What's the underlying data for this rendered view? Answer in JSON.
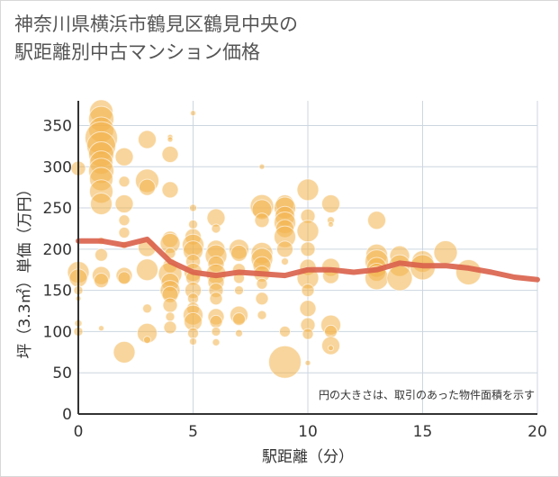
{
  "title": {
    "line1": "神奈川県横浜市鶴見区鶴見中央の",
    "line2": "駅距離別中古マンション価格"
  },
  "chart_data": {
    "type": "scatter",
    "title": "神奈川県横浜市鶴見区鶴見中央の駅距離別中古マンション価格",
    "xlabel": "駅距離（分）",
    "ylabel": "坪（3.3㎡）単価（万円）",
    "xlim": [
      0,
      20
    ],
    "ylim": [
      0,
      380
    ],
    "xticks": [
      "0",
      "5",
      "10",
      "15",
      "20"
    ],
    "yticks": [
      "0",
      "50",
      "100",
      "150",
      "200",
      "250",
      "300",
      "350"
    ],
    "xtick_values": [
      0,
      5,
      10,
      15,
      20
    ],
    "ytick_values": [
      0,
      50,
      100,
      150,
      200,
      250,
      300,
      350
    ],
    "grid": true,
    "annotation": "円の大きさは、取引のあった物件面積を示す",
    "colors": {
      "bubble": "#f2b24a",
      "line": "#d9604a",
      "grid": "#ccd6e0",
      "axis": "#333333"
    },
    "bubbles": [
      {
        "x": 0,
        "y": 298,
        "s": 8
      },
      {
        "x": 0,
        "y": 172,
        "s": 12
      },
      {
        "x": 0,
        "y": 165,
        "s": 10
      },
      {
        "x": 0,
        "y": 150,
        "s": 5
      },
      {
        "x": 0,
        "y": 140,
        "s": 3
      },
      {
        "x": 0,
        "y": 110,
        "s": 4
      },
      {
        "x": 0,
        "y": 100,
        "s": 5
      },
      {
        "x": 1,
        "y": 367,
        "s": 13
      },
      {
        "x": 1,
        "y": 358,
        "s": 14
      },
      {
        "x": 1,
        "y": 345,
        "s": 14
      },
      {
        "x": 1,
        "y": 335,
        "s": 18
      },
      {
        "x": 1,
        "y": 325,
        "s": 16
      },
      {
        "x": 1,
        "y": 315,
        "s": 14
      },
      {
        "x": 1,
        "y": 305,
        "s": 13
      },
      {
        "x": 1,
        "y": 295,
        "s": 14
      },
      {
        "x": 1,
        "y": 285,
        "s": 13
      },
      {
        "x": 1,
        "y": 270,
        "s": 13
      },
      {
        "x": 1,
        "y": 255,
        "s": 12
      },
      {
        "x": 1,
        "y": 210,
        "s": 4
      },
      {
        "x": 1,
        "y": 193,
        "s": 7
      },
      {
        "x": 1,
        "y": 168,
        "s": 10
      },
      {
        "x": 1,
        "y": 162,
        "s": 8
      },
      {
        "x": 1,
        "y": 104,
        "s": 3
      },
      {
        "x": 2,
        "y": 312,
        "s": 10
      },
      {
        "x": 2,
        "y": 282,
        "s": 6
      },
      {
        "x": 2,
        "y": 255,
        "s": 10
      },
      {
        "x": 2,
        "y": 235,
        "s": 6
      },
      {
        "x": 2,
        "y": 220,
        "s": 6
      },
      {
        "x": 2,
        "y": 205,
        "s": 4
      },
      {
        "x": 2,
        "y": 168,
        "s": 9
      },
      {
        "x": 2,
        "y": 165,
        "s": 7
      },
      {
        "x": 2,
        "y": 75,
        "s": 12
      },
      {
        "x": 3,
        "y": 333,
        "s": 10
      },
      {
        "x": 3,
        "y": 283,
        "s": 13
      },
      {
        "x": 3,
        "y": 275,
        "s": 9
      },
      {
        "x": 3,
        "y": 202,
        "s": 10
      },
      {
        "x": 3,
        "y": 175,
        "s": 12
      },
      {
        "x": 3,
        "y": 128,
        "s": 5
      },
      {
        "x": 3,
        "y": 98,
        "s": 11
      },
      {
        "x": 3,
        "y": 90,
        "s": 4
      },
      {
        "x": 4,
        "y": 336,
        "s": 3
      },
      {
        "x": 4,
        "y": 333,
        "s": 3
      },
      {
        "x": 4,
        "y": 315,
        "s": 9
      },
      {
        "x": 4,
        "y": 272,
        "s": 9
      },
      {
        "x": 4,
        "y": 212,
        "s": 9
      },
      {
        "x": 4,
        "y": 207,
        "s": 11
      },
      {
        "x": 4,
        "y": 195,
        "s": 6
      },
      {
        "x": 4,
        "y": 180,
        "s": 8
      },
      {
        "x": 4,
        "y": 170,
        "s": 13
      },
      {
        "x": 4,
        "y": 160,
        "s": 10
      },
      {
        "x": 4,
        "y": 150,
        "s": 11
      },
      {
        "x": 4,
        "y": 145,
        "s": 9
      },
      {
        "x": 4,
        "y": 132,
        "s": 8
      },
      {
        "x": 4,
        "y": 118,
        "s": 5
      },
      {
        "x": 4,
        "y": 105,
        "s": 7
      },
      {
        "x": 5,
        "y": 365,
        "s": 3
      },
      {
        "x": 5,
        "y": 250,
        "s": 4
      },
      {
        "x": 5,
        "y": 230,
        "s": 5
      },
      {
        "x": 5,
        "y": 215,
        "s": 9
      },
      {
        "x": 5,
        "y": 205,
        "s": 12
      },
      {
        "x": 5,
        "y": 198,
        "s": 11
      },
      {
        "x": 5,
        "y": 185,
        "s": 8
      },
      {
        "x": 5,
        "y": 172,
        "s": 10
      },
      {
        "x": 5,
        "y": 165,
        "s": 8
      },
      {
        "x": 5,
        "y": 150,
        "s": 9
      },
      {
        "x": 5,
        "y": 140,
        "s": 6
      },
      {
        "x": 5,
        "y": 128,
        "s": 7
      },
      {
        "x": 5,
        "y": 120,
        "s": 11
      },
      {
        "x": 5,
        "y": 112,
        "s": 10
      },
      {
        "x": 5,
        "y": 98,
        "s": 6
      },
      {
        "x": 5,
        "y": 88,
        "s": 4
      },
      {
        "x": 6,
        "y": 238,
        "s": 10
      },
      {
        "x": 6,
        "y": 225,
        "s": 5
      },
      {
        "x": 6,
        "y": 200,
        "s": 10
      },
      {
        "x": 6,
        "y": 192,
        "s": 12
      },
      {
        "x": 6,
        "y": 182,
        "s": 9
      },
      {
        "x": 6,
        "y": 170,
        "s": 11
      },
      {
        "x": 6,
        "y": 160,
        "s": 9
      },
      {
        "x": 6,
        "y": 150,
        "s": 8
      },
      {
        "x": 6,
        "y": 140,
        "s": 7
      },
      {
        "x": 6,
        "y": 118,
        "s": 9
      },
      {
        "x": 6,
        "y": 112,
        "s": 7
      },
      {
        "x": 6,
        "y": 100,
        "s": 5
      },
      {
        "x": 6,
        "y": 87,
        "s": 4
      },
      {
        "x": 7,
        "y": 200,
        "s": 11
      },
      {
        "x": 7,
        "y": 195,
        "s": 9
      },
      {
        "x": 7,
        "y": 175,
        "s": 7
      },
      {
        "x": 7,
        "y": 165,
        "s": 6
      },
      {
        "x": 7,
        "y": 150,
        "s": 5
      },
      {
        "x": 7,
        "y": 120,
        "s": 10
      },
      {
        "x": 7,
        "y": 115,
        "s": 7
      },
      {
        "x": 7,
        "y": 98,
        "s": 4
      },
      {
        "x": 8,
        "y": 300,
        "s": 3
      },
      {
        "x": 8,
        "y": 252,
        "s": 13
      },
      {
        "x": 8,
        "y": 248,
        "s": 11
      },
      {
        "x": 8,
        "y": 235,
        "s": 8
      },
      {
        "x": 8,
        "y": 195,
        "s": 12
      },
      {
        "x": 8,
        "y": 188,
        "s": 12
      },
      {
        "x": 8,
        "y": 180,
        "s": 10
      },
      {
        "x": 8,
        "y": 170,
        "s": 9
      },
      {
        "x": 8,
        "y": 158,
        "s": 6
      },
      {
        "x": 8,
        "y": 140,
        "s": 7
      },
      {
        "x": 8,
        "y": 120,
        "s": 5
      },
      {
        "x": 9,
        "y": 255,
        "s": 10
      },
      {
        "x": 9,
        "y": 250,
        "s": 12
      },
      {
        "x": 9,
        "y": 240,
        "s": 11
      },
      {
        "x": 9,
        "y": 232,
        "s": 12
      },
      {
        "x": 9,
        "y": 225,
        "s": 10
      },
      {
        "x": 9,
        "y": 215,
        "s": 12
      },
      {
        "x": 9,
        "y": 200,
        "s": 9
      },
      {
        "x": 9,
        "y": 185,
        "s": 4
      },
      {
        "x": 9,
        "y": 100,
        "s": 6
      },
      {
        "x": 9,
        "y": 63,
        "s": 18
      },
      {
        "x": 10,
        "y": 272,
        "s": 12
      },
      {
        "x": 10,
        "y": 240,
        "s": 8
      },
      {
        "x": 10,
        "y": 222,
        "s": 12
      },
      {
        "x": 10,
        "y": 200,
        "s": 8
      },
      {
        "x": 10,
        "y": 178,
        "s": 9
      },
      {
        "x": 10,
        "y": 165,
        "s": 12
      },
      {
        "x": 10,
        "y": 150,
        "s": 7
      },
      {
        "x": 10,
        "y": 128,
        "s": 9
      },
      {
        "x": 10,
        "y": 108,
        "s": 8
      },
      {
        "x": 10,
        "y": 97,
        "s": 6
      },
      {
        "x": 10,
        "y": 62,
        "s": 3
      },
      {
        "x": 11,
        "y": 255,
        "s": 10
      },
      {
        "x": 11,
        "y": 235,
        "s": 4
      },
      {
        "x": 11,
        "y": 230,
        "s": 3
      },
      {
        "x": 11,
        "y": 178,
        "s": 10
      },
      {
        "x": 11,
        "y": 168,
        "s": 9
      },
      {
        "x": 11,
        "y": 108,
        "s": 11
      },
      {
        "x": 11,
        "y": 100,
        "s": 7
      },
      {
        "x": 11,
        "y": 83,
        "s": 10
      },
      {
        "x": 11,
        "y": 80,
        "s": 3
      },
      {
        "x": 13,
        "y": 235,
        "s": 10
      },
      {
        "x": 13,
        "y": 193,
        "s": 12
      },
      {
        "x": 13,
        "y": 185,
        "s": 13
      },
      {
        "x": 13,
        "y": 178,
        "s": 11
      },
      {
        "x": 13,
        "y": 172,
        "s": 10
      },
      {
        "x": 13,
        "y": 165,
        "s": 13
      },
      {
        "x": 14,
        "y": 192,
        "s": 11
      },
      {
        "x": 14,
        "y": 180,
        "s": 12
      },
      {
        "x": 14,
        "y": 165,
        "s": 14
      },
      {
        "x": 15,
        "y": 185,
        "s": 12
      },
      {
        "x": 15,
        "y": 178,
        "s": 14
      },
      {
        "x": 16,
        "y": 196,
        "s": 13
      },
      {
        "x": 17,
        "y": 172,
        "s": 14
      }
    ],
    "series": [
      {
        "x": [
          0,
          1,
          2,
          3,
          4,
          5,
          6,
          7,
          8,
          9,
          10,
          11,
          12,
          13,
          14,
          15,
          16,
          17,
          18,
          19,
          20
        ],
        "values": [
          210,
          210,
          205,
          212,
          185,
          172,
          168,
          172,
          170,
          168,
          175,
          175,
          172,
          175,
          183,
          180,
          180,
          177,
          172,
          166,
          163
        ]
      }
    ]
  }
}
